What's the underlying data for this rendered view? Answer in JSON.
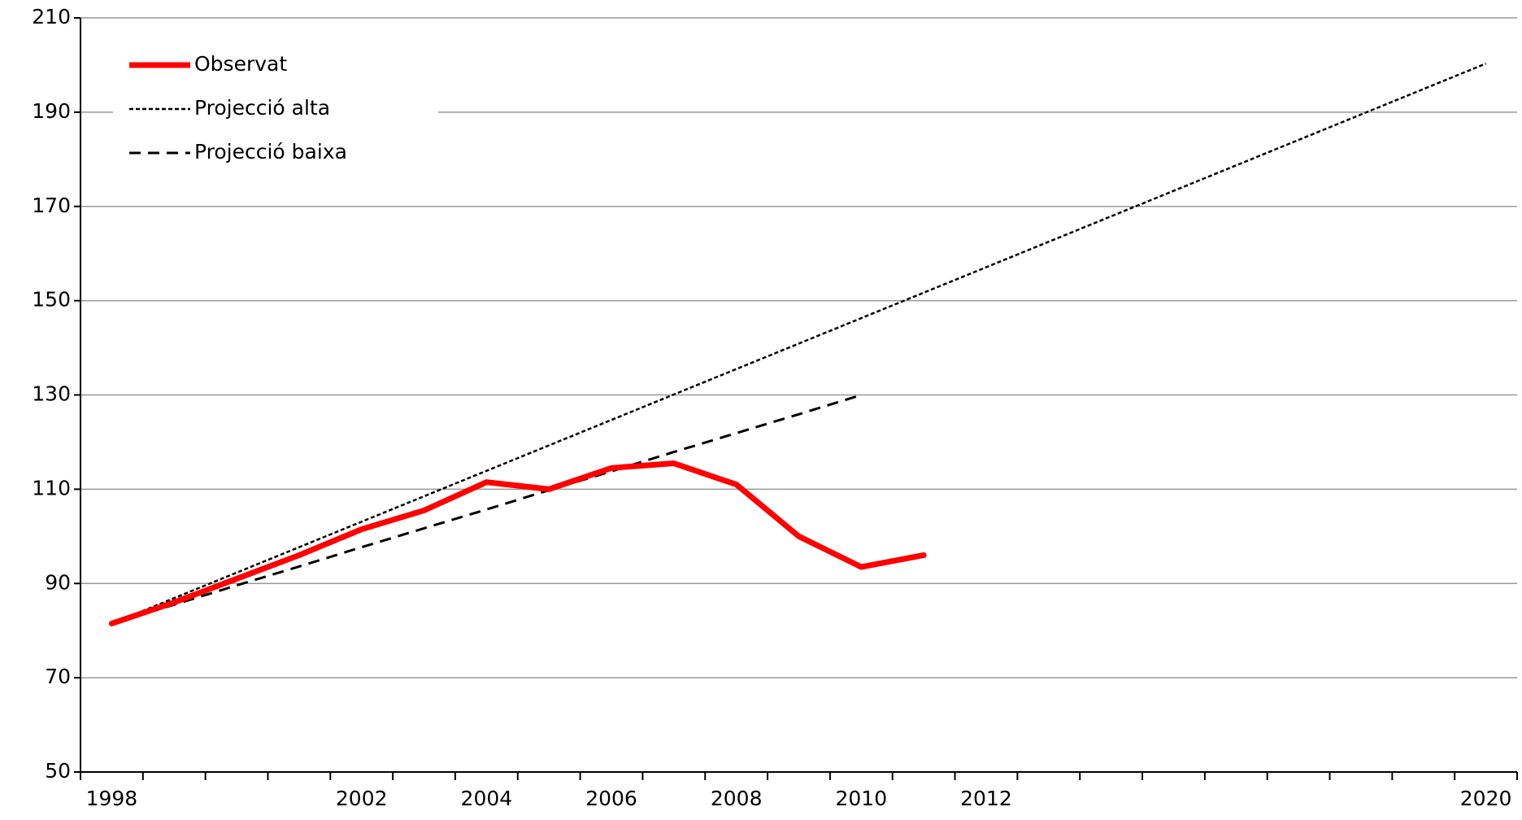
{
  "chart_data": {
    "type": "line",
    "categories": [
      "1998",
      null,
      null,
      null,
      "2002",
      null,
      "2004",
      null,
      "2006",
      null,
      "2008",
      null,
      "2010",
      null,
      "2012",
      null,
      null,
      null,
      null,
      null,
      null,
      null,
      "2020"
    ],
    "series": [
      {
        "name": "Observat",
        "color": "#ff0000",
        "style": "solid",
        "values": [
          81.5,
          86,
          91,
          96,
          101.5,
          105.5,
          111.5,
          110,
          114.5,
          115.5,
          111,
          100,
          93.5,
          96,
          null,
          null,
          null,
          null,
          null,
          null,
          null,
          null,
          null
        ]
      },
      {
        "name": "Projecció alta",
        "color": "#000000",
        "style": "dotted",
        "values": [
          81.5,
          86.9,
          92.3,
          97.7,
          103.1,
          108.5,
          113.9,
          119.3,
          124.7,
          130.1,
          135.5,
          140.9,
          146.3,
          151.7,
          157.1,
          162.5,
          167.9,
          173.3,
          178.7,
          184.1,
          189.5,
          194.9,
          200.3
        ]
      },
      {
        "name": "Projecció baixa",
        "color": "#000000",
        "style": "dashed",
        "values": [
          81.5,
          85.5,
          89.6,
          93.6,
          97.7,
          101.7,
          105.7,
          109.8,
          113.8,
          117.9,
          121.9,
          125.9,
          130,
          null,
          null,
          null,
          null,
          null,
          null,
          null,
          null,
          null,
          null
        ]
      }
    ],
    "ylim": [
      50,
      210
    ],
    "yticks": [
      50,
      70,
      90,
      110,
      130,
      150,
      170,
      190,
      210
    ],
    "grid": true,
    "legend": "top-left"
  }
}
